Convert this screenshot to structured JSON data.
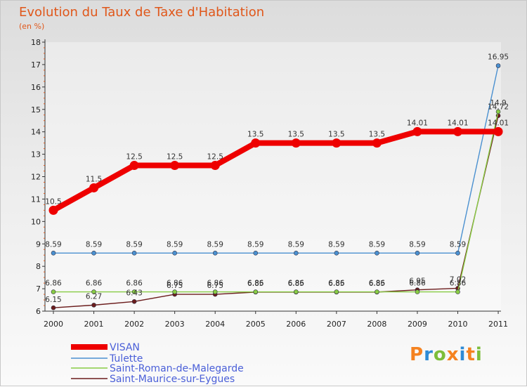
{
  "title": "Evolution du Taux de Taxe d'Habitation",
  "subtitle": "(en %)",
  "logo": "Proxiti",
  "logo_colors": [
    "#f58220",
    "#2e8bd6",
    "#7cbd3a",
    "#f58220",
    "#2e8bd6",
    "#f58220",
    "#7cbd3a"
  ],
  "chart_data": {
    "type": "line",
    "title": "Evolution du Taux de Taxe d'Habitation",
    "ylabel": "(en %)",
    "xlabel": "",
    "ylim": [
      6,
      18
    ],
    "yticks": [
      "6",
      "7",
      "8",
      "9",
      "10",
      "11",
      "12",
      "13",
      "14",
      "15",
      "16",
      "17",
      "18"
    ],
    "categories": [
      "2000",
      "2001",
      "2002",
      "2003",
      "2004",
      "2005",
      "2006",
      "2007",
      "2008",
      "2009",
      "2010",
      "2011"
    ],
    "series": [
      {
        "name": "VISAN",
        "color": "#ee0000",
        "values": [
          10.5,
          11.5,
          12.5,
          12.5,
          12.5,
          13.5,
          13.5,
          13.5,
          13.5,
          14.01,
          14.01,
          14.01
        ],
        "labels": [
          "10.5",
          "11.5",
          "12.5",
          "12.5",
          "12.5",
          "13.5",
          "13.5",
          "13.5",
          "13.5",
          "14.01",
          "14.01",
          "14.01"
        ]
      },
      {
        "name": "Tulette",
        "color": "#4a90d0",
        "values": [
          8.59,
          8.59,
          8.59,
          8.59,
          8.59,
          8.59,
          8.59,
          8.59,
          8.59,
          8.59,
          8.59,
          16.95
        ],
        "labels": [
          "8.59",
          "8.59",
          "8.59",
          "8.59",
          "8.59",
          "8.59",
          "8.59",
          "8.59",
          "8.59",
          "8.59",
          "8.59",
          "16.95"
        ]
      },
      {
        "name": "Saint-Roman-de-Malegarde",
        "color": "#88cc44",
        "values": [
          6.86,
          6.86,
          6.86,
          6.86,
          6.86,
          6.86,
          6.86,
          6.86,
          6.86,
          6.86,
          6.86,
          14.9
        ],
        "labels": [
          "6.86",
          "6.86",
          "6.86",
          "6.86",
          "6.86",
          "6.86",
          "6.86",
          "6.86",
          "6.86",
          "6.86",
          "6.86",
          "14.9"
        ]
      },
      {
        "name": "Saint-Maurice-sur-Eygues",
        "color": "#6b1c1c",
        "values": [
          6.15,
          6.27,
          6.43,
          6.75,
          6.75,
          6.85,
          6.85,
          6.85,
          6.85,
          6.95,
          7.02,
          14.72
        ],
        "labels": [
          "6.15",
          "6.27",
          "6.43",
          "6.75",
          "6.75",
          "6.85",
          "6.85",
          "6.85",
          "6.85",
          "6.95",
          "7.02",
          "14.72"
        ]
      }
    ]
  }
}
